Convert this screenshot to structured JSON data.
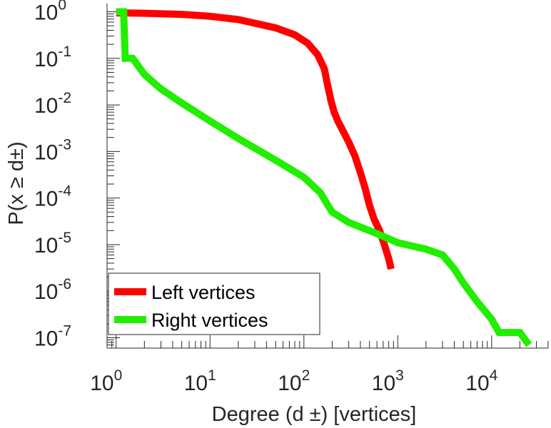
{
  "chart_data": {
    "type": "line",
    "title": "",
    "xlabel": "Degree (d ±) [vertices]",
    "ylabel": "P(x ≥ d±)",
    "x_scale": "log",
    "y_scale": "log",
    "xlim": [
      0.8,
      40000
    ],
    "ylim": [
      6e-08,
      1.5
    ],
    "grid": false,
    "legend_position": "bottom-left",
    "x_ticks": [
      {
        "value": 1,
        "base": "10",
        "exp": "0"
      },
      {
        "value": 10,
        "base": "10",
        "exp": "1"
      },
      {
        "value": 100,
        "base": "10",
        "exp": "2"
      },
      {
        "value": 1000,
        "base": "10",
        "exp": "3"
      },
      {
        "value": 10000,
        "base": "10",
        "exp": "4"
      }
    ],
    "y_ticks": [
      {
        "value": 1,
        "base": "10",
        "exp": "0"
      },
      {
        "value": 0.1,
        "base": "10",
        "exp": "-1"
      },
      {
        "value": 0.01,
        "base": "10",
        "exp": "-2"
      },
      {
        "value": 0.001,
        "base": "10",
        "exp": "-3"
      },
      {
        "value": 0.0001,
        "base": "10",
        "exp": "-4"
      },
      {
        "value": 1e-05,
        "base": "10",
        "exp": "-5"
      },
      {
        "value": 1e-06,
        "base": "10",
        "exp": "-6"
      },
      {
        "value": 1e-07,
        "base": "10",
        "exp": "-7"
      }
    ],
    "series": [
      {
        "name": "Left vertices",
        "color": "#ff0000",
        "x": [
          1,
          2,
          5,
          10,
          20,
          50,
          80,
          110,
          140,
          165,
          180,
          195,
          210,
          230,
          260,
          300,
          350,
          400,
          450,
          500,
          560,
          640,
          720,
          800,
          850
        ],
        "y": [
          0.95,
          0.93,
          0.88,
          0.8,
          0.68,
          0.45,
          0.32,
          0.21,
          0.12,
          0.06,
          0.025,
          0.012,
          0.007,
          0.0045,
          0.0028,
          0.0016,
          0.0008,
          0.00035,
          0.00016,
          7e-05,
          3.5e-05,
          2e-05,
          1e-05,
          5e-06,
          3e-06
        ]
      },
      {
        "name": "Right vertices",
        "color": "#22ee00",
        "x": [
          1,
          1.2,
          1.25,
          1.5,
          2,
          3,
          5,
          10,
          20,
          50,
          100,
          150,
          180,
          200,
          300,
          500,
          700,
          1000,
          2000,
          3000,
          4000,
          5000,
          7000,
          10000,
          12000,
          20000,
          25000
        ],
        "y": [
          1,
          1,
          0.1,
          0.1,
          0.045,
          0.022,
          0.011,
          0.0045,
          0.0019,
          0.00065,
          0.00028,
          0.00013,
          7e-05,
          5e-05,
          3e-05,
          2e-05,
          1.5e-05,
          1.1e-05,
          8e-06,
          6e-06,
          3e-06,
          1.5e-06,
          6e-07,
          2.5e-07,
          1.3e-07,
          1.3e-07,
          7e-08
        ]
      }
    ]
  }
}
